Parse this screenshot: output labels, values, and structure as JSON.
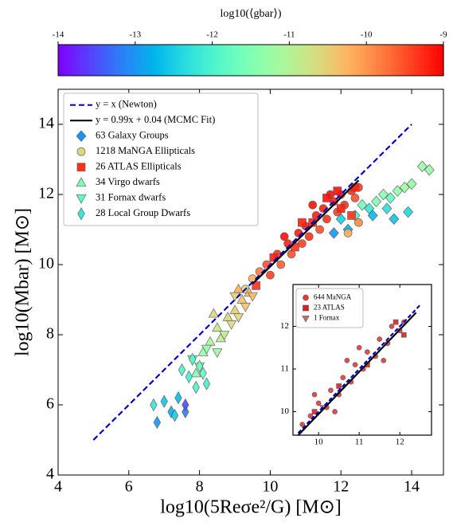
{
  "chart_data": [
    {
      "type": "scatter",
      "xlabel": "log10(5Reσe²/G) [M⊙]",
      "ylabel": "log10(Mbar) [M⊙]",
      "xlim": [
        4,
        14.9
      ],
      "ylim": [
        4,
        15
      ],
      "xticks": [
        4,
        6,
        8,
        10,
        12,
        14
      ],
      "yticks": [
        4,
        6,
        8,
        10,
        12,
        14
      ],
      "legend": "upper left",
      "colorbar": {
        "label": "log10(⟨gbar⟩)",
        "colormap": "rainbow",
        "clim": [
          -14,
          -9
        ],
        "ticks": [
          -14,
          -13,
          -12,
          -11,
          -10,
          -9
        ]
      },
      "lines": [
        {
          "name": "y = x (Newton)",
          "color": "#0000cc",
          "style": "dashed",
          "x": [
            5,
            14
          ],
          "y": [
            5,
            14
          ]
        },
        {
          "name": "y = 0.99x + 0.04 (MCMC Fit)",
          "color": "#000000",
          "style": "solid",
          "x": [
            9.5,
            12.5
          ],
          "y": [
            9.45,
            12.4
          ]
        }
      ],
      "series": [
        {
          "name": "63 Galaxy Groups",
          "marker": "diamond",
          "x": [
            11.8,
            12.0,
            12.2,
            12.4,
            12.6,
            12.8,
            13.0,
            13.2,
            13.4,
            13.6,
            13.8,
            13.5,
            13.9,
            14.0,
            14.3,
            14.5,
            12.9,
            13.3
          ],
          "y": [
            10.9,
            11.3,
            11.0,
            11.4,
            11.7,
            11.6,
            11.8,
            12.0,
            11.9,
            12.1,
            12.2,
            11.3,
            11.5,
            12.3,
            12.8,
            12.7,
            11.4,
            11.6
          ],
          "c": [
            -13,
            -12.5,
            -12.8,
            -12,
            -11.6,
            -12.2,
            -11.5,
            -11.4,
            -11.8,
            -11.3,
            -11.2,
            -12.6,
            -12.4,
            -11.3,
            -11.2,
            -11.3,
            -12.7,
            -12.3
          ]
        },
        {
          "name": "1218 MaNGA Ellipticals",
          "marker": "circle",
          "x": [
            9.3,
            9.5,
            9.7,
            9.9,
            10.0,
            10.2,
            10.3,
            10.5,
            10.6,
            10.8,
            10.9,
            11.0,
            11.1,
            11.3,
            11.4,
            11.5,
            11.6,
            11.8,
            11.9,
            12.0,
            12.1,
            12.3,
            12.4,
            12.5,
            11.2,
            10.4,
            12.2,
            12.5,
            11.7
          ],
          "y": [
            9.3,
            9.6,
            9.8,
            10.0,
            9.7,
            10.3,
            10.0,
            10.6,
            10.3,
            10.9,
            10.6,
            11.1,
            10.8,
            11.4,
            11.0,
            11.6,
            11.3,
            11.8,
            11.5,
            12.0,
            11.7,
            12.1,
            11.9,
            12.2,
            11.7,
            10.8,
            10.9,
            11.2,
            12.0
          ],
          "c": [
            -10.6,
            -10.2,
            -9.8,
            -9.5,
            -9.4,
            -9.3,
            -9.6,
            -9.2,
            -9.5,
            -9.2,
            -9.4,
            -9.2,
            -9.3,
            -9.2,
            -9.5,
            -9.2,
            -9.3,
            -9.2,
            -9.4,
            -9.2,
            -9.3,
            -9.3,
            -9.5,
            -9.4,
            -9.1,
            -9.1,
            -10.2,
            -9.9,
            -9.1
          ]
        },
        {
          "name": "26 ATLAS Ellipticals",
          "marker": "square",
          "x": [
            9.6,
            10.1,
            10.7,
            11.2,
            11.6,
            12.0,
            12.3,
            12.4,
            10.9,
            11.9
          ],
          "y": [
            9.4,
            10.2,
            10.5,
            11.2,
            11.9,
            11.6,
            11.4,
            12.2,
            11.2,
            12.1
          ],
          "c": [
            -9.3,
            -9.2,
            -9.3,
            -9.2,
            -9.1,
            -9.2,
            -9.3,
            -9.2,
            -9.2,
            -9.1
          ]
        },
        {
          "name": "34 Virgo dwarfs",
          "marker": "triangle-up",
          "x": [
            7.9,
            8.1,
            8.3,
            8.5,
            8.6,
            8.8,
            9.0,
            9.2,
            9.4,
            8.4,
            9.1
          ],
          "y": [
            6.9,
            7.5,
            7.8,
            8.2,
            7.9,
            8.5,
            8.7,
            9.0,
            9.2,
            8.6,
            9.3
          ],
          "c": [
            -11.5,
            -11.2,
            -11.0,
            -10.8,
            -10.9,
            -10.6,
            -10.5,
            -10.4,
            -10.3,
            -10.6,
            -10.2
          ]
        },
        {
          "name": "31 Fornax dwarfs",
          "marker": "triangle-down",
          "x": [
            7.8,
            8.0,
            8.2,
            8.5,
            8.7,
            8.9,
            9.1,
            9.3,
            9.5,
            9.0
          ],
          "y": [
            7.3,
            7.1,
            7.6,
            7.5,
            8.0,
            8.3,
            8.5,
            8.8,
            9.1,
            9.1
          ],
          "c": [
            -11.8,
            -11.6,
            -11.3,
            -11.2,
            -10.9,
            -10.7,
            -10.6,
            -10.4,
            -10.3,
            -10.5
          ]
        },
        {
          "name": "28 Local Group Dwarfs",
          "marker": "thin-diamond",
          "x": [
            6.7,
            6.8,
            7.0,
            7.2,
            7.3,
            7.4,
            7.6,
            7.6,
            7.7,
            7.9,
            7.8,
            8.1,
            8.2,
            7.5,
            8.0
          ],
          "y": [
            6.0,
            5.5,
            6.1,
            5.8,
            5.7,
            6.2,
            5.8,
            6.0,
            6.8,
            6.5,
            7.3,
            6.9,
            6.6,
            7.0,
            7.1
          ],
          "c": [
            -12.2,
            -13.0,
            -12.6,
            -12.8,
            -12.5,
            -12.7,
            -13.2,
            -13.5,
            -12.1,
            -12.0,
            -11.9,
            -11.8,
            -12.1,
            -12.0,
            -11.6
          ]
        }
      ]
    },
    {
      "type": "scatter",
      "xlim": [
        9.37,
        12.78
      ],
      "ylim": [
        9.45,
        12.98
      ],
      "xticks": [
        10,
        11,
        12
      ],
      "yticks": [
        10,
        11,
        12
      ],
      "legend": "upper left",
      "lines": [
        {
          "color": "#0000cc",
          "style": "dashed",
          "x": [
            9.5,
            12.5
          ],
          "y": [
            9.5,
            12.5
          ]
        },
        {
          "color": "#000000",
          "style": "solid",
          "x": [
            9.5,
            12.4
          ],
          "y": [
            9.45,
            12.32
          ]
        }
      ],
      "series": [
        {
          "name": "644 MaNGA",
          "marker": "circle",
          "color": "#e03a3a",
          "x": [
            9.6,
            9.8,
            10.0,
            10.2,
            10.3,
            10.5,
            10.6,
            10.8,
            10.9,
            11.1,
            11.2,
            11.4,
            11.5,
            11.7,
            11.8,
            12.0,
            12.1,
            9.9,
            10.4,
            11.0,
            11.6,
            10.7
          ],
          "y": [
            9.7,
            9.9,
            10.2,
            10.1,
            10.5,
            10.4,
            10.8,
            10.7,
            11.1,
            11.0,
            11.4,
            11.3,
            11.7,
            11.6,
            12.0,
            11.9,
            12.1,
            10.4,
            10.0,
            11.5,
            11.2,
            11.2
          ]
        },
        {
          "name": "23 ATLAS",
          "marker": "square",
          "color": "#d92020",
          "x": [
            9.9,
            10.5,
            11.2,
            11.9,
            12.1
          ],
          "y": [
            10.0,
            10.6,
            11.1,
            12.1,
            11.8
          ]
        },
        {
          "name": "1 Fornax",
          "marker": "triangle-down",
          "color": "#c87060",
          "x": [
            10.1
          ],
          "y": [
            10.1
          ]
        }
      ]
    }
  ]
}
